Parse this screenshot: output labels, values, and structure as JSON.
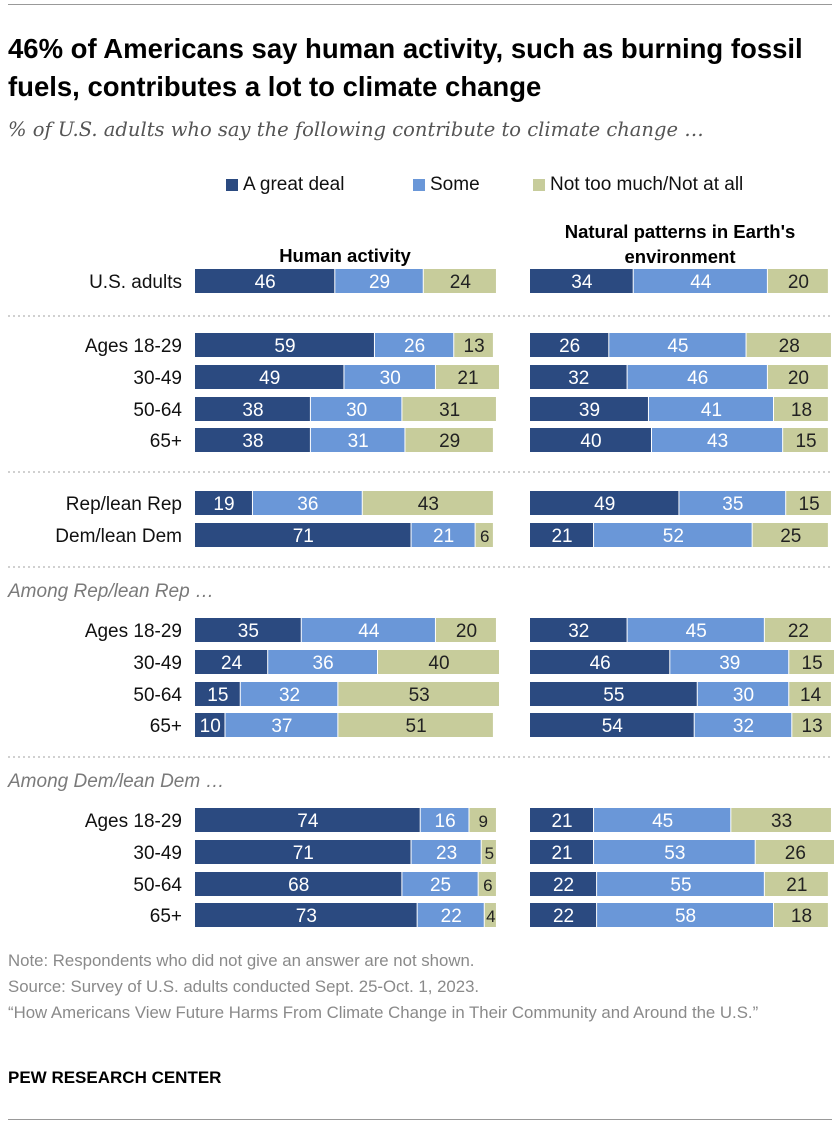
{
  "title": "46% of Americans say human activity, such as burning fossil fuels, contributes a lot to climate change",
  "subtitle": "% of U.S. adults who say the following contribute to climate change …",
  "legend": [
    {
      "label": "A great deal",
      "color": "#2b4a80"
    },
    {
      "label": "Some",
      "color": "#6a97d8"
    },
    {
      "label": "Not too much/Not at all",
      "color": "#c7cc9b"
    }
  ],
  "panels": [
    {
      "title": "Human activity"
    },
    {
      "title_line1": "Natural patterns in Earth's",
      "title_line2": "environment"
    }
  ],
  "groups": [
    {
      "header": ""
    },
    {
      "header": ""
    },
    {
      "header": ""
    },
    {
      "header": "Among Rep/lean Rep …"
    },
    {
      "header": "Among Dem/lean Dem …"
    }
  ],
  "chart_data": {
    "type": "bar",
    "orientation": "horizontal",
    "stacked": true,
    "unit": "%",
    "xlim": [
      0,
      100
    ],
    "series": [
      {
        "name": "A great deal"
      },
      {
        "name": "Some"
      },
      {
        "name": "Not too much/Not at all"
      }
    ],
    "rows": [
      {
        "label": "U.S. adults",
        "group": 0,
        "human": [
          46,
          29,
          24
        ],
        "natural": [
          34,
          44,
          20
        ]
      },
      {
        "label": "Ages 18-29",
        "group": 1,
        "human": [
          59,
          26,
          13
        ],
        "natural": [
          26,
          45,
          28
        ]
      },
      {
        "label": "30-49",
        "group": 1,
        "human": [
          49,
          30,
          21
        ],
        "natural": [
          32,
          46,
          20
        ]
      },
      {
        "label": "50-64",
        "group": 1,
        "human": [
          38,
          30,
          31
        ],
        "natural": [
          39,
          41,
          18
        ]
      },
      {
        "label": "65+",
        "group": 1,
        "human": [
          38,
          31,
          29
        ],
        "natural": [
          40,
          43,
          15
        ]
      },
      {
        "label": "Rep/lean Rep",
        "group": 2,
        "human": [
          19,
          36,
          43
        ],
        "natural": [
          49,
          35,
          15
        ]
      },
      {
        "label": "Dem/lean Dem",
        "group": 2,
        "human": [
          71,
          21,
          6
        ],
        "natural": [
          21,
          52,
          25
        ]
      },
      {
        "label": "Ages 18-29",
        "group": 3,
        "human": [
          35,
          44,
          20
        ],
        "natural": [
          32,
          45,
          22
        ]
      },
      {
        "label": "30-49",
        "group": 3,
        "human": [
          24,
          36,
          40
        ],
        "natural": [
          46,
          39,
          15
        ]
      },
      {
        "label": "50-64",
        "group": 3,
        "human": [
          15,
          32,
          53
        ],
        "natural": [
          55,
          30,
          14
        ]
      },
      {
        "label": "65+",
        "group": 3,
        "human": [
          10,
          37,
          51
        ],
        "natural": [
          54,
          32,
          13
        ]
      },
      {
        "label": "Ages 18-29",
        "group": 4,
        "human": [
          74,
          16,
          9
        ],
        "natural": [
          21,
          45,
          33
        ]
      },
      {
        "label": "30-49",
        "group": 4,
        "human": [
          71,
          23,
          5
        ],
        "natural": [
          21,
          53,
          26
        ]
      },
      {
        "label": "50-64",
        "group": 4,
        "human": [
          68,
          25,
          6
        ],
        "natural": [
          22,
          55,
          21
        ]
      },
      {
        "label": "65+",
        "group": 4,
        "human": [
          73,
          22,
          4
        ],
        "natural": [
          22,
          58,
          18
        ]
      }
    ]
  },
  "notes": {
    "note": "Note: Respondents who did not give an answer are not shown.",
    "source": "Source: Survey of U.S. adults conducted Sept. 25-Oct. 1, 2023.",
    "report": "“How Americans View Future Harms From Climate Change in Their Community and Around the U.S.”"
  },
  "brand": "PEW RESEARCH CENTER"
}
